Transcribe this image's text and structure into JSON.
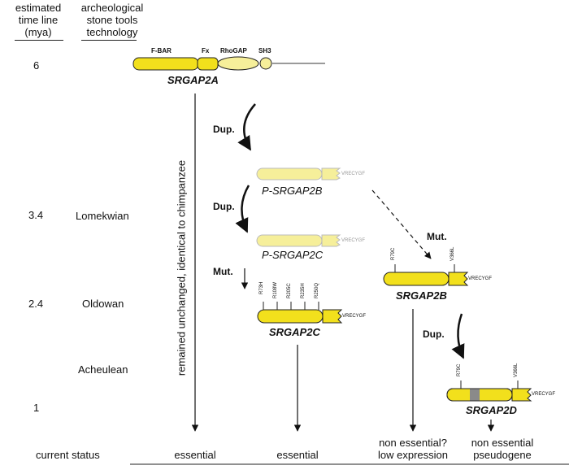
{
  "headers": {
    "timeline": "estimated\ntime line\n(mya)",
    "technology": "archeological\nstone tools\ntechnology"
  },
  "timeline_values": [
    "6",
    "3.4",
    "2.4",
    "1"
  ],
  "technologies": [
    "Lomekwian",
    "Oldowan",
    "Acheulean"
  ],
  "domains": [
    "F-BAR",
    "Fx",
    "RhoGAP",
    "SH3"
  ],
  "genes": {
    "srgap2a": "SRGAP2A",
    "p_srgap2b": "P-SRGAP2B",
    "p_srgap2c": "P-SRGAP2C",
    "srgap2c": "SRGAP2C",
    "srgap2b": "SRGAP2B",
    "srgap2d": "SRGAP2D"
  },
  "tail_label": "VRECYGF",
  "events": {
    "dup": "Dup.",
    "mut": "Mut."
  },
  "mutations_2c": [
    "R73H",
    "R108W",
    "R205C",
    "R235H",
    "R250Q"
  ],
  "mutations_2b": [
    "R79C",
    "V366L"
  ],
  "mutations_2d": [
    "R79C",
    "V366L"
  ],
  "vertical_note": "remained unchanged,  identical to chimpanzee",
  "status": {
    "label": "current status",
    "srgap2a": "essential",
    "srgap2c": "essential",
    "srgap2b": "non essential?\nlow expression",
    "srgap2d": "non essential\npseudogene"
  },
  "colors": {
    "gene_fill": "#f2e01c",
    "pseudo_fill": "#f6ef9a",
    "outline": "#222222",
    "linker": "#9a9a9a",
    "insert": "#8a8a8a"
  }
}
